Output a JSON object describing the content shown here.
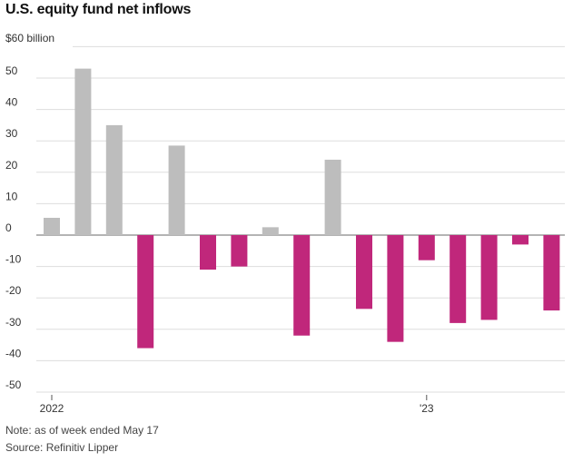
{
  "chart_data": {
    "type": "bar",
    "title": "U.S. equity fund net inflows",
    "y_unit_label": "$60 billion",
    "ylim": [
      -50,
      60
    ],
    "yticks": [
      -50,
      -40,
      -30,
      -20,
      -10,
      0,
      10,
      20,
      30,
      40,
      50
    ],
    "ytick_labels": [
      "-50",
      "-40",
      "-30",
      "-20",
      "-10",
      "0",
      "10",
      "20",
      "30",
      "40",
      "50"
    ],
    "x_labels": [
      {
        "text": "2022",
        "bar_index": 0
      },
      {
        "text": "'23",
        "bar_index": 12
      }
    ],
    "values": [
      5.5,
      53,
      35,
      -36,
      28.5,
      -11,
      -10,
      2.5,
      -32,
      24,
      -23.5,
      -34,
      -8,
      -28,
      -27,
      -3,
      -24
    ],
    "colors": {
      "positive": "#bdbdbd",
      "negative": "#c0277b",
      "grid": "#dddddd",
      "axis": "#888888"
    },
    "grid": true
  },
  "footer": {
    "note": "Note: as of week ended May 17",
    "source": "Source: Refinitiv Lipper"
  }
}
